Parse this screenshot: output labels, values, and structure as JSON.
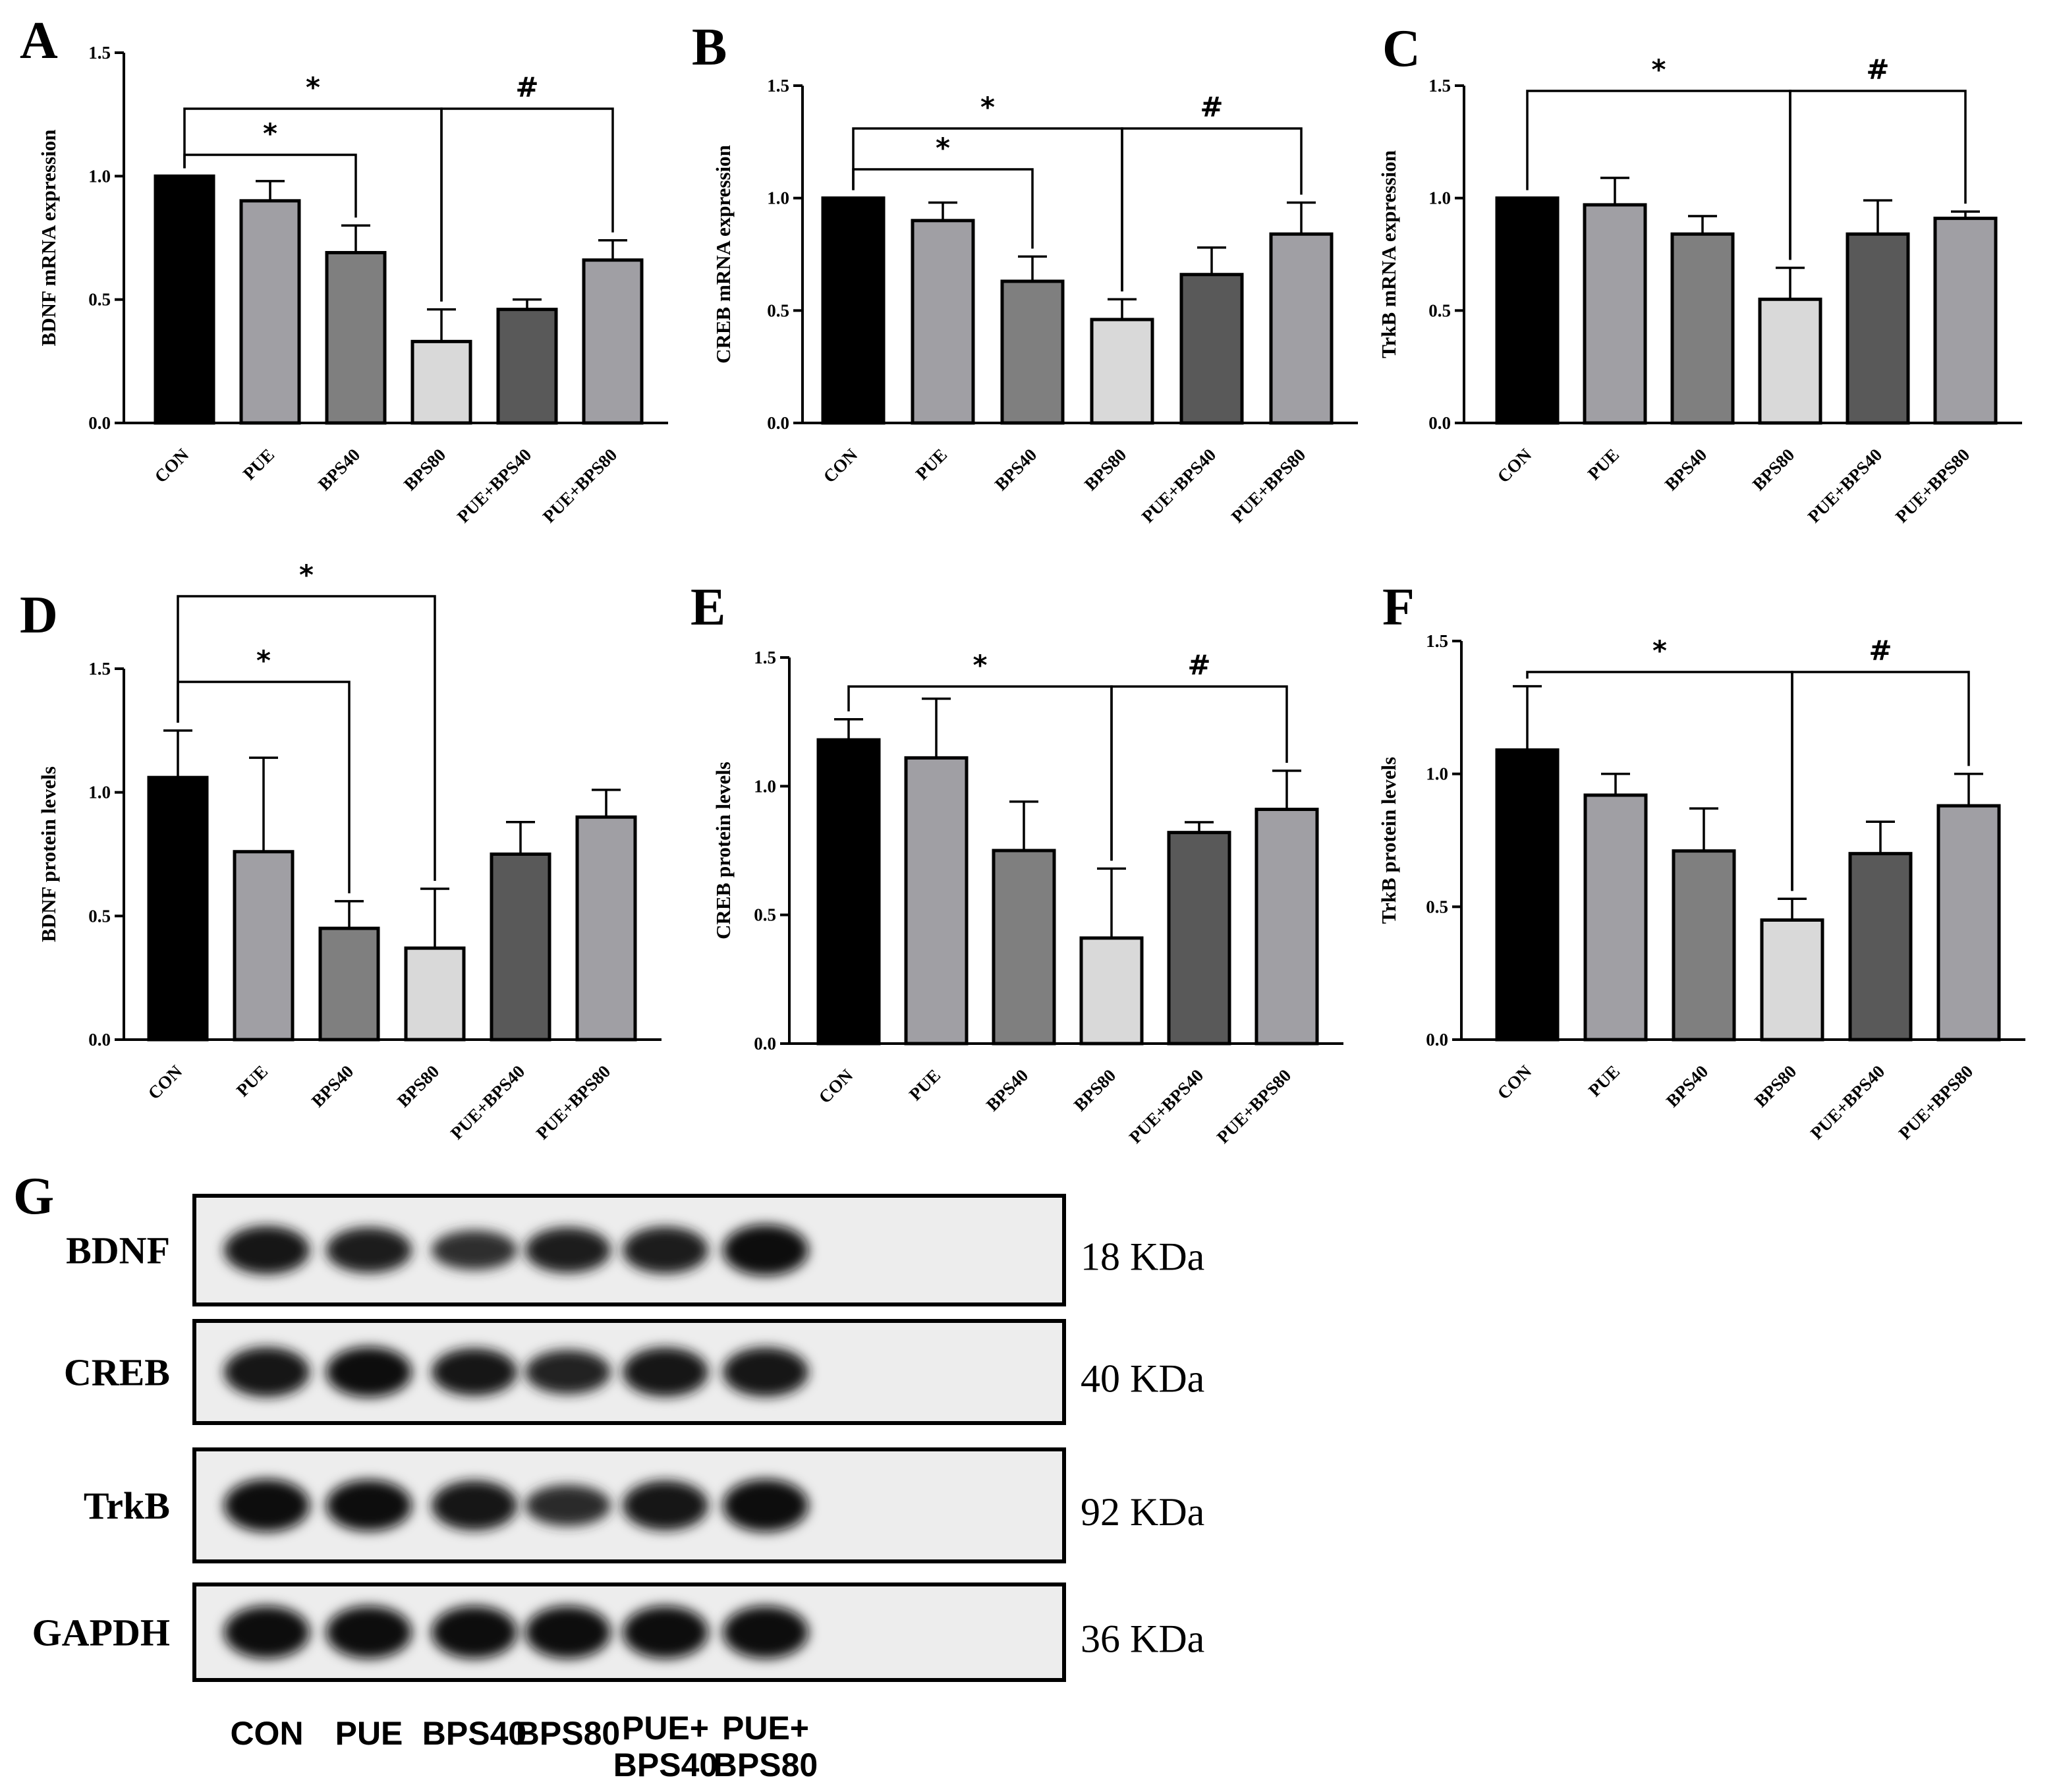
{
  "categories": [
    "CON",
    "PUE",
    "BPS40",
    "BPS80",
    "PUE+BPS40",
    "PUE+BPS80"
  ],
  "colors": [
    "#000000",
    "#a09fa4",
    "#7f7f7f",
    "#d9d9d9",
    "#595959",
    "#a09fa4"
  ],
  "chart_data": [
    {
      "panel": "A",
      "type": "bar",
      "ylabel": "BDNF mRNA expression",
      "ylim": [
        0,
        1.5
      ],
      "yticks": [
        "0.0",
        "0.5",
        "1.0",
        "1.5"
      ],
      "values": [
        1.0,
        0.9,
        0.69,
        0.33,
        0.46,
        0.66
      ],
      "errors": [
        0,
        0.08,
        0.11,
        0.13,
        0.04,
        0.08
      ],
      "sig": [
        {
          "from": 0,
          "to": 2,
          "mark": "*"
        },
        {
          "from": 0,
          "to": 3,
          "mark": "*"
        },
        {
          "from": 3,
          "to": 5,
          "mark": "#"
        }
      ]
    },
    {
      "panel": "B",
      "type": "bar",
      "ylabel": "CREB mRNA expression",
      "ylim": [
        0,
        1.5
      ],
      "yticks": [
        "0.0",
        "0.5",
        "1.0",
        "1.5"
      ],
      "values": [
        1.0,
        0.9,
        0.63,
        0.46,
        0.66,
        0.84
      ],
      "errors": [
        0,
        0.08,
        0.11,
        0.09,
        0.12,
        0.14
      ],
      "sig": [
        {
          "from": 0,
          "to": 2,
          "mark": "*"
        },
        {
          "from": 0,
          "to": 3,
          "mark": "*"
        },
        {
          "from": 3,
          "to": 5,
          "mark": "#"
        }
      ]
    },
    {
      "panel": "C",
      "type": "bar",
      "ylabel": "TrkB mRNA  expression",
      "ylim": [
        0,
        1.5
      ],
      "yticks": [
        "0.0",
        "0.5",
        "1.0",
        "1.5"
      ],
      "values": [
        1.0,
        0.97,
        0.84,
        0.55,
        0.84,
        0.91
      ],
      "errors": [
        0,
        0.12,
        0.08,
        0.14,
        0.15,
        0.03
      ],
      "sig": [
        {
          "from": 0,
          "to": 3,
          "mark": "*"
        },
        {
          "from": 3,
          "to": 5,
          "mark": "#"
        }
      ]
    },
    {
      "panel": "D",
      "type": "bar",
      "ylabel": "BDNF protein levels",
      "ylim": [
        0,
        1.5
      ],
      "yticks": [
        "0.0",
        "0.5",
        "1.0",
        "1.5"
      ],
      "values": [
        1.06,
        0.76,
        0.45,
        0.37,
        0.75,
        0.9
      ],
      "errors": [
        0.19,
        0.38,
        0.11,
        0.24,
        0.13,
        0.11
      ],
      "sig": [
        {
          "from": 0,
          "to": 2,
          "mark": "*"
        },
        {
          "from": 0,
          "to": 3,
          "mark": "*"
        }
      ]
    },
    {
      "panel": "E",
      "type": "bar",
      "ylabel": "CREB protein levels",
      "ylim": [
        0,
        1.5
      ],
      "yticks": [
        "0.0",
        "0.5",
        "1.0",
        "1.5"
      ],
      "values": [
        1.18,
        1.11,
        0.75,
        0.41,
        0.82,
        0.91
      ],
      "errors": [
        0.08,
        0.23,
        0.19,
        0.27,
        0.04,
        0.15
      ],
      "sig": [
        {
          "from": 0,
          "to": 3,
          "mark": "*"
        },
        {
          "from": 3,
          "to": 5,
          "mark": "#"
        }
      ]
    },
    {
      "panel": "F",
      "type": "bar",
      "ylabel": "TrkB protein  levels",
      "ylim": [
        0,
        1.5
      ],
      "yticks": [
        "0.0",
        "0.5",
        "1.0",
        "1.5"
      ],
      "values": [
        1.09,
        0.92,
        0.71,
        0.45,
        0.7,
        0.88
      ],
      "errors": [
        0.24,
        0.08,
        0.16,
        0.08,
        0.12,
        0.12
      ],
      "sig": [
        {
          "from": 0,
          "to": 3,
          "mark": "*"
        },
        {
          "from": 3,
          "to": 5,
          "mark": "#"
        }
      ]
    }
  ],
  "blot": {
    "panel": "G",
    "rows": [
      {
        "label": "BDNF",
        "kda": "18 KDa",
        "intensity": [
          0.85,
          0.75,
          0.55,
          0.75,
          0.8,
          0.95
        ]
      },
      {
        "label": "CREB",
        "kda": "40 KDa",
        "intensity": [
          0.9,
          0.92,
          0.82,
          0.7,
          0.88,
          0.88
        ]
      },
      {
        "label": "TrkB",
        "kda": "92 KDa",
        "intensity": [
          1.0,
          0.95,
          0.9,
          0.6,
          0.9,
          1.0
        ]
      },
      {
        "label": "GAPDH",
        "kda": "36 KDa",
        "intensity": [
          1.0,
          1.0,
          1.0,
          1.0,
          1.0,
          1.0
        ]
      }
    ],
    "lanes": [
      [
        "CON"
      ],
      [
        "PUE"
      ],
      [
        "BPS40"
      ],
      [
        "BPS80"
      ],
      [
        "PUE+",
        "BPS40"
      ],
      [
        "PUE+",
        "BPS80"
      ]
    ]
  }
}
